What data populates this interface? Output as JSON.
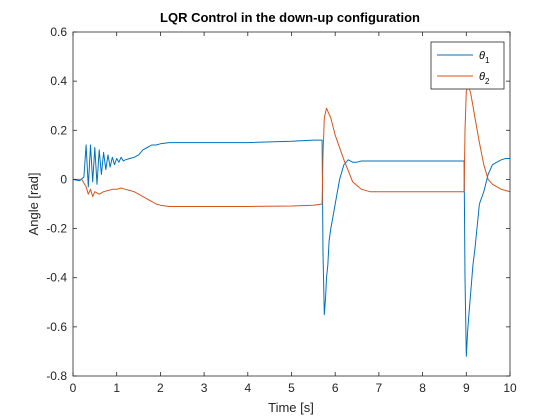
{
  "chart_data": {
    "type": "line",
    "title": "LQR Control in the down-up configuration",
    "xlabel": "Time [s]",
    "ylabel": "Angle [rad]",
    "xlim": [
      0,
      10
    ],
    "ylim": [
      -0.8,
      0.6
    ],
    "xticks": [
      0,
      1,
      2,
      3,
      4,
      5,
      6,
      7,
      8,
      9,
      10
    ],
    "yticks": [
      -0.8,
      -0.6,
      -0.4,
      -0.2,
      0,
      0.2,
      0.4,
      0.6
    ],
    "xtick_labels": [
      "0",
      "1",
      "2",
      "3",
      "4",
      "5",
      "6",
      "7",
      "8",
      "9",
      "10"
    ],
    "ytick_labels": [
      "-0.8",
      "-0.6",
      "-0.4",
      "-0.2",
      "0",
      "0.2",
      "0.4",
      "0.6"
    ],
    "grid": false,
    "legend_position": "top-right",
    "series": [
      {
        "name": "θ1",
        "name_base": "θ",
        "name_sub": "1",
        "color": "#0072BD",
        "x": [
          0,
          0.15,
          0.25,
          0.3,
          0.35,
          0.4,
          0.45,
          0.5,
          0.55,
          0.6,
          0.65,
          0.7,
          0.75,
          0.8,
          0.85,
          0.9,
          0.95,
          1.0,
          1.05,
          1.1,
          1.15,
          1.2,
          1.3,
          1.4,
          1.5,
          1.6,
          1.7,
          1.8,
          1.9,
          2.0,
          2.2,
          2.5,
          3.0,
          4.0,
          5.0,
          5.5,
          5.7,
          5.72,
          5.75,
          5.78,
          5.8,
          5.83,
          5.86,
          5.9,
          6.0,
          6.1,
          6.2,
          6.3,
          6.4,
          6.5,
          6.6,
          7.0,
          8.0,
          8.95,
          8.97,
          9.0,
          9.03,
          9.06,
          9.1,
          9.15,
          9.2,
          9.3,
          9.4,
          9.5,
          9.6,
          9.7,
          9.8,
          9.9,
          10.0
        ],
        "y": [
          0.0,
          -0.005,
          0.01,
          0.14,
          -0.03,
          0.14,
          -0.01,
          0.13,
          -0.02,
          0.12,
          0.02,
          0.11,
          0.04,
          0.1,
          0.05,
          0.09,
          0.06,
          0.085,
          0.07,
          0.09,
          0.075,
          0.08,
          0.085,
          0.09,
          0.1,
          0.12,
          0.13,
          0.14,
          0.14,
          0.145,
          0.15,
          0.15,
          0.15,
          0.15,
          0.155,
          0.16,
          0.16,
          -0.3,
          -0.55,
          -0.48,
          -0.4,
          -0.35,
          -0.25,
          -0.2,
          -0.1,
          0.0,
          0.06,
          0.08,
          0.07,
          0.07,
          0.075,
          0.075,
          0.075,
          0.075,
          -0.4,
          -0.72,
          -0.62,
          -0.55,
          -0.46,
          -0.35,
          -0.28,
          -0.1,
          -0.05,
          0.02,
          0.06,
          0.07,
          0.08,
          0.085,
          0.085
        ]
      },
      {
        "name": "θ2",
        "name_base": "θ",
        "name_sub": "2",
        "color": "#D95319",
        "x": [
          0,
          0.2,
          0.3,
          0.35,
          0.4,
          0.45,
          0.5,
          0.6,
          0.7,
          0.8,
          0.9,
          1.0,
          1.1,
          1.2,
          1.3,
          1.4,
          1.5,
          1.6,
          1.7,
          1.8,
          1.9,
          2.0,
          2.2,
          2.5,
          3.0,
          4.0,
          5.0,
          5.5,
          5.7,
          5.72,
          5.75,
          5.8,
          5.85,
          5.9,
          6.0,
          6.2,
          6.4,
          6.6,
          6.8,
          7.0,
          8.0,
          8.95,
          8.97,
          9.0,
          9.05,
          9.1,
          9.15,
          9.2,
          9.3,
          9.4,
          9.5,
          9.6,
          9.7,
          9.8,
          9.9,
          10.0
        ],
        "y": [
          0.0,
          0.0,
          -0.03,
          -0.06,
          -0.04,
          -0.07,
          -0.05,
          -0.06,
          -0.05,
          -0.045,
          -0.04,
          -0.04,
          -0.035,
          -0.04,
          -0.045,
          -0.05,
          -0.06,
          -0.07,
          -0.08,
          -0.09,
          -0.1,
          -0.105,
          -0.11,
          -0.11,
          -0.11,
          -0.11,
          -0.108,
          -0.105,
          -0.1,
          0.1,
          0.25,
          0.29,
          0.27,
          0.25,
          0.18,
          0.08,
          -0.01,
          -0.04,
          -0.05,
          -0.05,
          -0.05,
          -0.05,
          0.2,
          0.36,
          0.38,
          0.35,
          0.3,
          0.25,
          0.15,
          0.06,
          0.0,
          -0.02,
          -0.03,
          -0.04,
          -0.045,
          -0.05
        ]
      }
    ]
  }
}
